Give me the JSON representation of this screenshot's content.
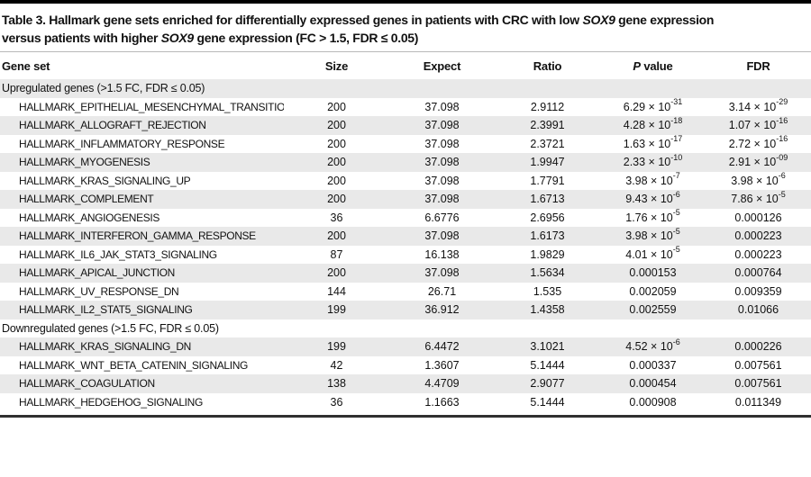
{
  "page": {
    "background_color": "#ffffff",
    "top_bar_color": "#000000",
    "stripe_color": "#e9e9e9",
    "header_border_color": "#b9b9b9",
    "bottom_rule_color": "#2f2f2f"
  },
  "title": {
    "lines": [
      "Table 3. Hallmark gene sets enriched for differentially expressed genes in patients with CRC with low *SOX9* gene expression",
      "versus patients with higher *SOX9* gene expression (FC > 1.5, FDR ≤ 0.05)"
    ]
  },
  "table": {
    "columns": [
      "Gene set",
      "Size",
      "Expect",
      "Ratio",
      "*P* value",
      "FDR"
    ],
    "rows": [
      {
        "type": "section",
        "label": "Upregulated genes (>1.5 FC, FDR ≤ 0.05)"
      },
      {
        "type": "data",
        "gene_set": "HALLMARK_EPITHELIAL_MESENCHYMAL_TRANSITION",
        "size": "200",
        "expect": "37.098",
        "ratio": "2.9112",
        "p_value": "6.29 × 10^-31",
        "fdr": "3.14 × 10^-29"
      },
      {
        "type": "data",
        "gene_set": "HALLMARK_ALLOGRAFT_REJECTION",
        "size": "200",
        "expect": "37.098",
        "ratio": "2.3991",
        "p_value": "4.28 × 10^-18",
        "fdr": "1.07 × 10^-16"
      },
      {
        "type": "data",
        "gene_set": "HALLMARK_INFLAMMATORY_RESPONSE",
        "size": "200",
        "expect": "37.098",
        "ratio": "2.3721",
        "p_value": "1.63 × 10^-17",
        "fdr": "2.72 × 10^-16"
      },
      {
        "type": "data",
        "gene_set": "HALLMARK_MYOGENESIS",
        "size": "200",
        "expect": "37.098",
        "ratio": "1.9947",
        "p_value": "2.33 × 10^-10",
        "fdr": "2.91 × 10^-09"
      },
      {
        "type": "data",
        "gene_set": "HALLMARK_KRAS_SIGNALING_UP",
        "size": "200",
        "expect": "37.098",
        "ratio": "1.7791",
        "p_value": "3.98 × 10^-7",
        "fdr": "3.98 × 10^-6"
      },
      {
        "type": "data",
        "gene_set": "HALLMARK_COMPLEMENT",
        "size": "200",
        "expect": "37.098",
        "ratio": "1.6713",
        "p_value": "9.43 × 10^-6",
        "fdr": "7.86 × 10^-5"
      },
      {
        "type": "data",
        "gene_set": "HALLMARK_ANGIOGENESIS",
        "size": "36",
        "expect": "6.6776",
        "ratio": "2.6956",
        "p_value": "1.76 × 10^-5",
        "fdr": "0.000126"
      },
      {
        "type": "data",
        "gene_set": "HALLMARK_INTERFERON_GAMMA_RESPONSE",
        "size": "200",
        "expect": "37.098",
        "ratio": "1.6173",
        "p_value": "3.98 × 10^-5",
        "fdr": "0.000223"
      },
      {
        "type": "data",
        "gene_set": "HALLMARK_IL6_JAK_STAT3_SIGNALING",
        "size": "87",
        "expect": "16.138",
        "ratio": "1.9829",
        "p_value": "4.01 × 10^-5",
        "fdr": "0.000223"
      },
      {
        "type": "data",
        "gene_set": "HALLMARK_APICAL_JUNCTION",
        "size": "200",
        "expect": "37.098",
        "ratio": "1.5634",
        "p_value": "0.000153",
        "fdr": "0.000764"
      },
      {
        "type": "data",
        "gene_set": "HALLMARK_UV_RESPONSE_DN",
        "size": "144",
        "expect": "26.71",
        "ratio": "1.535",
        "p_value": "0.002059",
        "fdr": "0.009359"
      },
      {
        "type": "data",
        "gene_set": "HALLMARK_IL2_STAT5_SIGNALING",
        "size": "199",
        "expect": "36.912",
        "ratio": "1.4358",
        "p_value": "0.002559",
        "fdr": "0.01066"
      },
      {
        "type": "section",
        "label": "Downregulated genes (>1.5 FC, FDR ≤ 0.05)"
      },
      {
        "type": "data",
        "gene_set": "HALLMARK_KRAS_SIGNALING_DN",
        "size": "199",
        "expect": "6.4472",
        "ratio": "3.1021",
        "p_value": "4.52 × 10^-6",
        "fdr": "0.000226"
      },
      {
        "type": "data",
        "gene_set": "HALLMARK_WNT_BETA_CATENIN_SIGNALING",
        "size": "42",
        "expect": "1.3607",
        "ratio": "5.1444",
        "p_value": "0.000337",
        "fdr": "0.007561"
      },
      {
        "type": "data",
        "gene_set": "HALLMARK_COAGULATION",
        "size": "138",
        "expect": "4.4709",
        "ratio": "2.9077",
        "p_value": "0.000454",
        "fdr": "0.007561"
      },
      {
        "type": "data",
        "gene_set": "HALLMARK_HEDGEHOG_SIGNALING",
        "size": "36",
        "expect": "1.1663",
        "ratio": "5.1444",
        "p_value": "0.000908",
        "fdr": "0.011349"
      }
    ]
  }
}
